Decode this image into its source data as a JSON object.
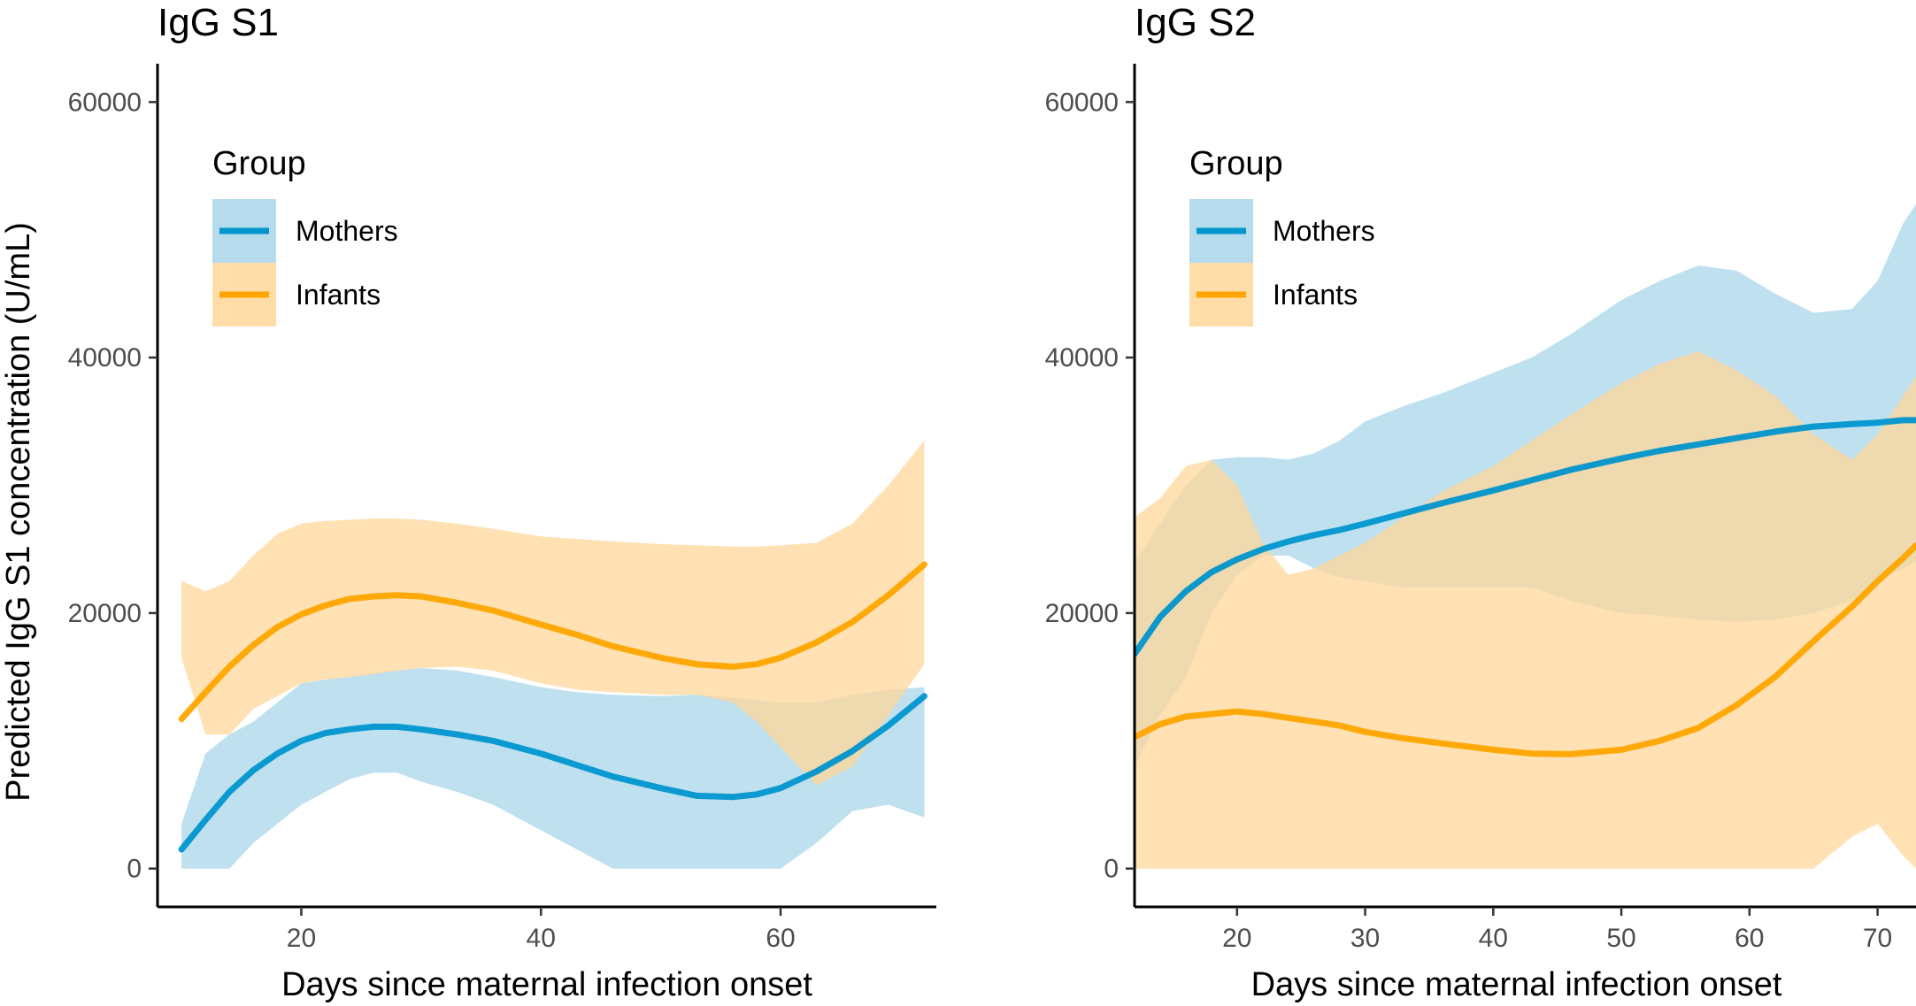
{
  "colors": {
    "mothers": "#0095CD",
    "mothers_band": "#A8D5EA",
    "infants": "#FFA500",
    "infants_band": "#FFD79A"
  },
  "chart_data": [
    {
      "type": "line",
      "title": "IgG S1",
      "xlabel": "Days since maternal infection onset",
      "ylabel": "Predicted IgG S1 concentration (U/mL)",
      "xlim": [
        8,
        73
      ],
      "ylim": [
        -3000,
        63000
      ],
      "xticks": [
        20,
        40,
        60
      ],
      "yticks": [
        0,
        20000,
        40000,
        60000
      ],
      "legend": {
        "title": "Group",
        "position": "top-left",
        "entries": [
          "Mothers",
          "Infants"
        ]
      },
      "series": [
        {
          "name": "Mothers",
          "x": [
            10,
            12,
            14,
            16,
            18,
            20,
            22,
            24,
            26,
            28,
            30,
            33,
            36,
            40,
            43,
            46,
            50,
            53,
            56,
            58,
            60,
            63,
            66,
            69,
            72
          ],
          "y": [
            1500,
            3800,
            6000,
            7700,
            9000,
            10000,
            10600,
            10900,
            11100,
            11100,
            10900,
            10500,
            10000,
            9000,
            8100,
            7200,
            6300,
            5700,
            5600,
            5800,
            6300,
            7600,
            9200,
            11200,
            13500
          ],
          "lower": [
            0,
            0,
            0,
            2000,
            3500,
            5000,
            6000,
            7000,
            7500,
            7500,
            6800,
            6000,
            5000,
            3000,
            1500,
            0,
            0,
            0,
            0,
            0,
            0,
            2000,
            4500,
            5000,
            4000
          ],
          "upper": [
            3500,
            9000,
            10500,
            11500,
            13000,
            14500,
            14800,
            15000,
            15300,
            15500,
            15700,
            15500,
            15000,
            14200,
            13800,
            13600,
            13500,
            13600,
            13400,
            13200,
            13000,
            13000,
            13600,
            14000,
            14200
          ]
        },
        {
          "name": "Infants",
          "x": [
            10,
            12,
            14,
            16,
            18,
            20,
            22,
            24,
            26,
            28,
            30,
            33,
            36,
            40,
            43,
            46,
            50,
            53,
            56,
            58,
            60,
            63,
            66,
            69,
            72
          ],
          "y": [
            11700,
            13800,
            15800,
            17500,
            18900,
            19900,
            20600,
            21100,
            21300,
            21400,
            21300,
            20800,
            20200,
            19100,
            18300,
            17400,
            16500,
            16000,
            15800,
            16000,
            16500,
            17700,
            19300,
            21400,
            23800
          ],
          "lower": [
            16500,
            10500,
            10500,
            12500,
            13500,
            14500,
            14800,
            15000,
            15200,
            15500,
            15700,
            15800,
            15500,
            14500,
            14000,
            13800,
            13600,
            13600,
            13000,
            11500,
            9500,
            6500,
            8000,
            12000,
            16000
          ],
          "upper": [
            22500,
            21700,
            22500,
            24500,
            26200,
            27000,
            27200,
            27300,
            27400,
            27400,
            27300,
            27000,
            26600,
            26000,
            25800,
            25600,
            25400,
            25300,
            25200,
            25200,
            25300,
            25500,
            27000,
            30000,
            33500
          ]
        }
      ]
    },
    {
      "type": "line",
      "title": "IgG S2",
      "xlabel": "Days since maternal infection onset",
      "ylabel": "",
      "xlim": [
        12,
        73
      ],
      "ylim": [
        -3000,
        63000
      ],
      "xticks": [
        20,
        30,
        40,
        50,
        60,
        70
      ],
      "yticks": [
        0,
        20000,
        40000,
        60000
      ],
      "legend": {
        "title": "Group",
        "position": "top-left",
        "entries": [
          "Mothers",
          "Infants"
        ]
      },
      "series": [
        {
          "name": "Mothers",
          "x": [
            12,
            14,
            16,
            18,
            20,
            22,
            24,
            26,
            28,
            30,
            33,
            36,
            40,
            43,
            46,
            50,
            53,
            56,
            59,
            62,
            65,
            68,
            70,
            72,
            73
          ],
          "y": [
            16800,
            19700,
            21700,
            23200,
            24200,
            25000,
            25600,
            26100,
            26500,
            27000,
            27800,
            28600,
            29600,
            30400,
            31200,
            32100,
            32700,
            33200,
            33700,
            34200,
            34600,
            34800,
            34900,
            35100,
            35100
          ],
          "lower": [
            8000,
            12000,
            15000,
            20000,
            23000,
            24500,
            24500,
            23500,
            22800,
            22500,
            22000,
            22000,
            22000,
            22000,
            21000,
            20000,
            19800,
            19500,
            19300,
            19500,
            20000,
            21000,
            22500,
            23500,
            24000
          ],
          "upper": [
            24000,
            27000,
            30000,
            32000,
            32200,
            32200,
            32000,
            32500,
            33500,
            35000,
            36200,
            37200,
            38800,
            40000,
            41800,
            44500,
            46000,
            47200,
            46800,
            45000,
            43500,
            43800,
            46000,
            50500,
            52000
          ]
        },
        {
          "name": "Infants",
          "x": [
            12,
            14,
            16,
            18,
            20,
            22,
            24,
            26,
            28,
            30,
            33,
            36,
            40,
            43,
            46,
            50,
            53,
            56,
            59,
            62,
            65,
            68,
            70,
            72,
            73
          ],
          "y": [
            10300,
            11300,
            11900,
            12100,
            12300,
            12100,
            11800,
            11500,
            11200,
            10700,
            10200,
            9800,
            9300,
            9000,
            8950,
            9300,
            10000,
            11000,
            12800,
            15000,
            17800,
            20500,
            22500,
            24300,
            25300
          ],
          "lower": [
            0,
            0,
            0,
            0,
            0,
            0,
            0,
            0,
            0,
            0,
            0,
            0,
            0,
            0,
            0,
            0,
            0,
            0,
            0,
            0,
            0,
            2500,
            3500,
            1000,
            0
          ],
          "upper": [
            27500,
            29000,
            31500,
            32000,
            30000,
            25500,
            23000,
            23500,
            24500,
            25500,
            27500,
            29500,
            31500,
            33500,
            35500,
            38000,
            39500,
            40500,
            39000,
            37000,
            34000,
            32000,
            34000,
            37000,
            38500
          ]
        }
      ]
    }
  ]
}
